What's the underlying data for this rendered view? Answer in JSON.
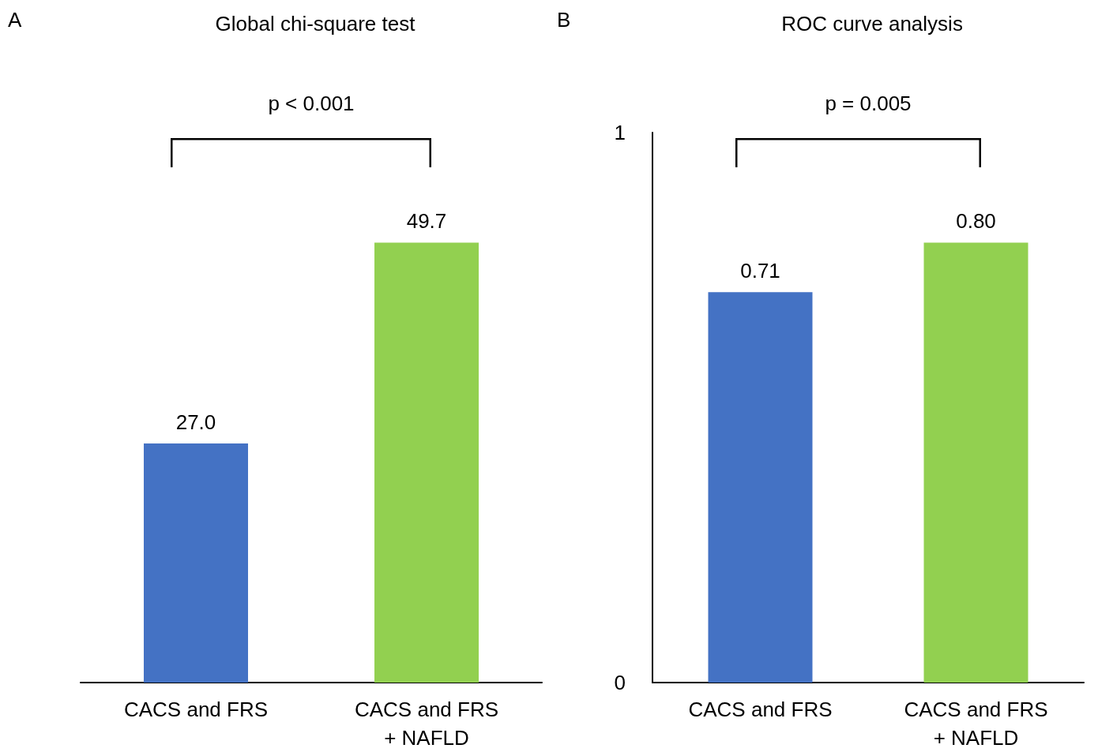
{
  "chart_data": [
    {
      "type": "bar",
      "title": "Global chi-square test",
      "annotations": [
        "A",
        "p < 0.001"
      ],
      "categories": [
        "CACS and FRS",
        "CACS and FRS\n+ NAFLD"
      ],
      "colors": [
        "#4472c4",
        "#92d050"
      ],
      "values": [
        27.0,
        49.7
      ],
      "value_labels": [
        "27.0",
        "49.7"
      ],
      "grid": false
    },
    {
      "type": "bar",
      "title": "ROC curve analysis",
      "annotations": [
        "B",
        "p = 0.005"
      ],
      "categories": [
        "CACS and FRS",
        "CACS and FRS\n+ NAFLD"
      ],
      "colors": [
        "#4472c4",
        "#92d050"
      ],
      "values": [
        0.71,
        0.8
      ],
      "value_labels": [
        "0.71",
        "0.80"
      ],
      "ylim": [
        0,
        1
      ],
      "yticks": [
        0,
        1
      ],
      "grid": false
    }
  ]
}
